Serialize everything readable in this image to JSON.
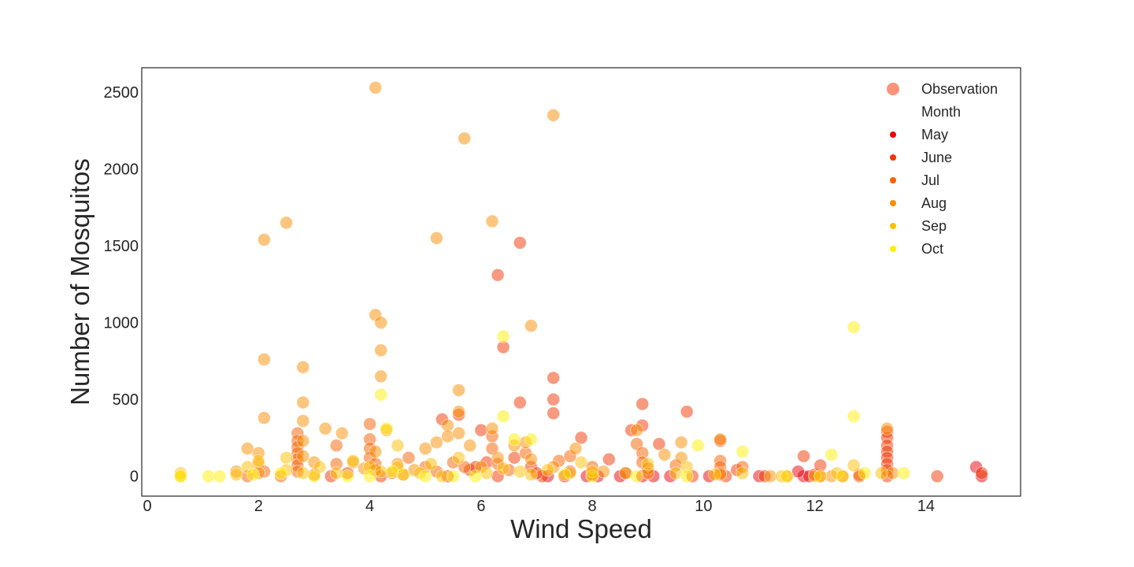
{
  "chart_data": {
    "type": "scatter",
    "xlabel": "Wind Speed",
    "ylabel": "Number of Mosquitos",
    "xlim": [
      -0.1,
      15.7
    ],
    "ylim": [
      -130,
      2660
    ],
    "x_ticks": [
      0,
      2,
      4,
      6,
      8,
      10,
      12,
      14
    ],
    "y_ticks": [
      0,
      500,
      1000,
      1500,
      2000,
      2500
    ],
    "grid": false,
    "legend": {
      "placement": "top-right",
      "observation_label": "Observation",
      "observation_color": "#fa8060",
      "title": "Month",
      "entries": [
        {
          "name": "May",
          "color": "#e8000b"
        },
        {
          "name": "June",
          "color": "#f03500"
        },
        {
          "name": "Jul",
          "color": "#f66000"
        },
        {
          "name": "Aug",
          "color": "#f98e00"
        },
        {
          "name": "Sep",
          "color": "#fdc000"
        },
        {
          "name": "Oct",
          "color": "#fff000"
        }
      ]
    },
    "series": [
      {
        "month": "May",
        "points": [
          [
            7.2,
            0
          ],
          [
            7.5,
            0
          ],
          [
            8.1,
            0
          ],
          [
            8.5,
            0
          ],
          [
            8.9,
            0
          ],
          [
            9.1,
            0
          ],
          [
            11.8,
            0
          ],
          [
            11.9,
            0
          ],
          [
            12.0,
            10
          ],
          [
            12.1,
            0
          ],
          [
            11.7,
            30
          ],
          [
            15.0,
            0
          ],
          [
            14.9,
            60
          ],
          [
            8.6,
            20
          ],
          [
            7.9,
            0
          ],
          [
            9.4,
            0
          ],
          [
            10.1,
            0
          ],
          [
            11.0,
            0
          ]
        ]
      },
      {
        "month": "June",
        "points": [
          [
            3.3,
            0
          ],
          [
            3.6,
            20
          ],
          [
            4.2,
            0
          ],
          [
            4.6,
            10
          ],
          [
            5.4,
            0
          ],
          [
            5.8,
            40
          ],
          [
            6.3,
            0
          ],
          [
            6.7,
            1520
          ],
          [
            6.4,
            840
          ],
          [
            6.7,
            480
          ],
          [
            7.3,
            640
          ],
          [
            7.3,
            500
          ],
          [
            7.3,
            410
          ],
          [
            8.9,
            470
          ],
          [
            8.9,
            330
          ],
          [
            9.7,
            420
          ],
          [
            8.7,
            300
          ],
          [
            7.8,
            250
          ],
          [
            8.3,
            110
          ],
          [
            9.2,
            210
          ],
          [
            10.3,
            230
          ],
          [
            10.6,
            40
          ],
          [
            11.8,
            130
          ],
          [
            12.1,
            70
          ],
          [
            12.5,
            0
          ],
          [
            13.3,
            290
          ],
          [
            13.3,
            250
          ],
          [
            13.3,
            200
          ],
          [
            13.3,
            160
          ],
          [
            13.3,
            120
          ],
          [
            13.3,
            80
          ],
          [
            13.3,
            40
          ],
          [
            13.3,
            0
          ],
          [
            14.2,
            0
          ],
          [
            15.0,
            20
          ],
          [
            6.3,
            1310
          ],
          [
            6.0,
            300
          ],
          [
            5.3,
            370
          ],
          [
            5.6,
            400
          ],
          [
            7.1,
            0
          ],
          [
            7.6,
            30
          ],
          [
            8.0,
            10
          ],
          [
            9.8,
            0
          ],
          [
            10.4,
            0
          ],
          [
            11.1,
            0
          ],
          [
            6.9,
            60
          ],
          [
            7.0,
            20
          ],
          [
            6.6,
            120
          ],
          [
            6.1,
            90
          ],
          [
            5.9,
            60
          ]
        ]
      },
      {
        "month": "Jul",
        "points": [
          [
            1.8,
            0
          ],
          [
            2.1,
            30
          ],
          [
            2.4,
            0
          ],
          [
            2.7,
            280
          ],
          [
            2.7,
            230
          ],
          [
            2.7,
            190
          ],
          [
            2.7,
            150
          ],
          [
            2.7,
            110
          ],
          [
            2.7,
            70
          ],
          [
            2.7,
            30
          ],
          [
            3.0,
            10
          ],
          [
            3.4,
            200
          ],
          [
            3.4,
            80
          ],
          [
            4.0,
            340
          ],
          [
            4.0,
            240
          ],
          [
            4.0,
            180
          ],
          [
            4.0,
            120
          ],
          [
            4.1,
            80
          ],
          [
            4.1,
            40
          ],
          [
            4.4,
            20
          ],
          [
            4.7,
            120
          ],
          [
            5.0,
            60
          ],
          [
            5.2,
            30
          ],
          [
            5.5,
            90
          ],
          [
            5.7,
            60
          ],
          [
            6.2,
            260
          ],
          [
            6.2,
            180
          ],
          [
            6.3,
            80
          ],
          [
            6.5,
            40
          ],
          [
            6.8,
            150
          ],
          [
            7.4,
            100
          ],
          [
            7.6,
            130
          ],
          [
            8.0,
            60
          ],
          [
            8.8,
            210
          ],
          [
            8.9,
            150
          ],
          [
            8.9,
            90
          ],
          [
            9.0,
            50
          ],
          [
            9.5,
            70
          ],
          [
            10.3,
            100
          ],
          [
            10.3,
            60
          ],
          [
            10.3,
            20
          ],
          [
            10.7,
            60
          ],
          [
            11.5,
            0
          ],
          [
            12.8,
            10
          ],
          [
            12.8,
            0
          ]
        ]
      },
      {
        "month": "Aug",
        "points": [
          [
            2.1,
            1540
          ],
          [
            2.1,
            760
          ],
          [
            2.1,
            380
          ],
          [
            2.0,
            150
          ],
          [
            2.0,
            80
          ],
          [
            2.0,
            20
          ],
          [
            2.5,
            1650
          ],
          [
            2.8,
            710
          ],
          [
            2.8,
            480
          ],
          [
            2.8,
            360
          ],
          [
            2.8,
            230
          ],
          [
            2.8,
            130
          ],
          [
            3.2,
            310
          ],
          [
            3.5,
            280
          ],
          [
            3.7,
            90
          ],
          [
            3.9,
            50
          ],
          [
            4.1,
            1050
          ],
          [
            4.2,
            1000
          ],
          [
            4.2,
            820
          ],
          [
            4.2,
            650
          ],
          [
            4.1,
            2530
          ],
          [
            4.3,
            300
          ],
          [
            4.1,
            160
          ],
          [
            4.5,
            80
          ],
          [
            4.8,
            40
          ],
          [
            5.2,
            1550
          ],
          [
            5.2,
            220
          ],
          [
            5.4,
            330
          ],
          [
            5.4,
            260
          ],
          [
            5.6,
            560
          ],
          [
            5.6,
            420
          ],
          [
            5.6,
            280
          ],
          [
            5.7,
            2200
          ],
          [
            5.8,
            200
          ],
          [
            6.2,
            1660
          ],
          [
            6.2,
            310
          ],
          [
            6.3,
            120
          ],
          [
            6.6,
            200
          ],
          [
            6.8,
            220
          ],
          [
            6.9,
            980
          ],
          [
            6.9,
            110
          ],
          [
            7.3,
            2350
          ],
          [
            7.3,
            60
          ],
          [
            7.7,
            180
          ],
          [
            8.8,
            300
          ],
          [
            9.0,
            20
          ],
          [
            9.3,
            140
          ],
          [
            9.6,
            220
          ],
          [
            9.6,
            120
          ],
          [
            10.3,
            240
          ],
          [
            10.3,
            10
          ],
          [
            11.2,
            0
          ],
          [
            12.3,
            0
          ],
          [
            13.3,
            310
          ],
          [
            13.4,
            20
          ],
          [
            1.8,
            180
          ],
          [
            1.6,
            30
          ],
          [
            3.0,
            90
          ],
          [
            5.0,
            180
          ],
          [
            6.0,
            60
          ],
          [
            8.2,
            30
          ]
        ]
      },
      {
        "month": "Sep",
        "points": [
          [
            0.6,
            20
          ],
          [
            0.6,
            0
          ],
          [
            1.6,
            10
          ],
          [
            1.8,
            60
          ],
          [
            2.0,
            100
          ],
          [
            2.5,
            120
          ],
          [
            2.5,
            40
          ],
          [
            2.8,
            20
          ],
          [
            3.1,
            60
          ],
          [
            3.4,
            20
          ],
          [
            3.7,
            100
          ],
          [
            4.0,
            60
          ],
          [
            4.2,
            30
          ],
          [
            4.5,
            200
          ],
          [
            4.5,
            60
          ],
          [
            4.9,
            20
          ],
          [
            5.1,
            80
          ],
          [
            5.3,
            0
          ],
          [
            5.6,
            120
          ],
          [
            6.1,
            20
          ],
          [
            6.4,
            50
          ],
          [
            6.7,
            30
          ],
          [
            6.9,
            10
          ],
          [
            7.2,
            40
          ],
          [
            7.6,
            20
          ],
          [
            7.8,
            90
          ],
          [
            8.0,
            30
          ],
          [
            8.6,
            20
          ],
          [
            9.0,
            80
          ],
          [
            9.5,
            20
          ],
          [
            9.7,
            60
          ],
          [
            10.2,
            10
          ],
          [
            10.7,
            20
          ],
          [
            11.4,
            0
          ],
          [
            12.0,
            0
          ],
          [
            12.4,
            20
          ],
          [
            12.7,
            70
          ],
          [
            13.2,
            20
          ]
        ]
      },
      {
        "month": "Oct",
        "points": [
          [
            0.6,
            0
          ],
          [
            1.1,
            0
          ],
          [
            1.3,
            0
          ],
          [
            1.9,
            10
          ],
          [
            2.4,
            20
          ],
          [
            3.0,
            0
          ],
          [
            3.6,
            0
          ],
          [
            4.0,
            0
          ],
          [
            4.2,
            530
          ],
          [
            4.3,
            310
          ],
          [
            4.4,
            30
          ],
          [
            4.6,
            10
          ],
          [
            5.0,
            0
          ],
          [
            5.5,
            0
          ],
          [
            5.9,
            0
          ],
          [
            6.4,
            910
          ],
          [
            6.4,
            390
          ],
          [
            6.6,
            240
          ],
          [
            6.9,
            240
          ],
          [
            7.5,
            10
          ],
          [
            8.0,
            0
          ],
          [
            8.8,
            0
          ],
          [
            9.7,
            0
          ],
          [
            9.9,
            200
          ],
          [
            10.7,
            160
          ],
          [
            11.5,
            0
          ],
          [
            12.1,
            0
          ],
          [
            12.3,
            140
          ],
          [
            12.7,
            970
          ],
          [
            12.7,
            390
          ],
          [
            12.9,
            20
          ],
          [
            13.6,
            20
          ],
          [
            12.5,
            0
          ]
        ]
      }
    ]
  }
}
